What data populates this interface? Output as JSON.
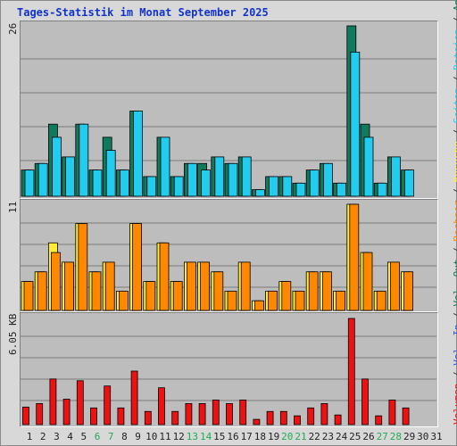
{
  "title": "Tages-Statistik im Monat September 2025",
  "colors": {
    "anfragen": "#127a5c",
    "dateien": "#22ccee",
    "seiten": "#22ccee",
    "besuche": "#ffee33",
    "rechner": "#ff8800",
    "volumen": "#ee1111",
    "vol_in": "#3355dd",
    "vol_out": "#117755",
    "weekend_day": "#22aa55",
    "label_dark": "#222222",
    "separator": "#333333"
  },
  "right_labels": [
    {
      "text": "Volumen",
      "color_key": "volumen"
    },
    {
      "text": "Vol. In",
      "color_key": "vol_in"
    },
    {
      "text": "Vol. Out",
      "color_key": "vol_out"
    },
    {
      "text": "Rechner",
      "color_key": "rechner"
    },
    {
      "text": "Besuche",
      "color_key": "besuche"
    },
    {
      "text": "Seiten",
      "color_key": "seiten"
    },
    {
      "text": "Dateien",
      "color_key": "dateien"
    },
    {
      "text": "Anfragen",
      "color_key": "anfragen"
    }
  ],
  "chart_data": [
    {
      "type": "bar",
      "panel": "top",
      "max_label": "26",
      "ylim": [
        0,
        26
      ],
      "categories": [
        "1",
        "2",
        "3",
        "4",
        "5",
        "6",
        "7",
        "8",
        "9",
        "10",
        "11",
        "12",
        "13",
        "14",
        "15",
        "16",
        "17",
        "18",
        "19",
        "20",
        "21",
        "22",
        "23",
        "24",
        "25",
        "26",
        "27",
        "28",
        "29",
        "30",
        "31"
      ],
      "series": [
        {
          "name": "Anfragen",
          "values": [
            4,
            5,
            11,
            6,
            11,
            4,
            9,
            4,
            13,
            3,
            9,
            3,
            5,
            5,
            6,
            5,
            6,
            1,
            3,
            3,
            2,
            4,
            5,
            2,
            26,
            11,
            2,
            6,
            4,
            0,
            0
          ]
        },
        {
          "name": "Dateien",
          "values": [
            4,
            5,
            9,
            6,
            11,
            4,
            7,
            4,
            13,
            3,
            9,
            3,
            5,
            4,
            6,
            5,
            6,
            1,
            3,
            3,
            2,
            4,
            5,
            2,
            22,
            9,
            2,
            6,
            4,
            0,
            0
          ]
        }
      ]
    },
    {
      "type": "bar",
      "panel": "middle",
      "max_label": "11",
      "ylim": [
        0,
        11
      ],
      "categories": [
        "1",
        "2",
        "3",
        "4",
        "5",
        "6",
        "7",
        "8",
        "9",
        "10",
        "11",
        "12",
        "13",
        "14",
        "15",
        "16",
        "17",
        "18",
        "19",
        "20",
        "21",
        "22",
        "23",
        "24",
        "25",
        "26",
        "27",
        "28",
        "29",
        "30",
        "31"
      ],
      "series": [
        {
          "name": "Besuche",
          "values": [
            3,
            4,
            7,
            5,
            9,
            4,
            5,
            2,
            9,
            3,
            7,
            3,
            5,
            5,
            4,
            2,
            5,
            1,
            2,
            3,
            2,
            4,
            4,
            2,
            11,
            6,
            2,
            5,
            4,
            0,
            0
          ]
        },
        {
          "name": "Rechner",
          "values": [
            3,
            4,
            6,
            5,
            9,
            4,
            5,
            2,
            9,
            3,
            7,
            3,
            5,
            5,
            4,
            2,
            5,
            1,
            2,
            3,
            2,
            4,
            4,
            2,
            11,
            6,
            2,
            5,
            4,
            0,
            0
          ]
        }
      ]
    },
    {
      "type": "bar",
      "panel": "bottom",
      "max_label": "6.05 KB",
      "ylim": [
        0,
        6.05
      ],
      "categories": [
        "1",
        "2",
        "3",
        "4",
        "5",
        "6",
        "7",
        "8",
        "9",
        "10",
        "11",
        "12",
        "13",
        "14",
        "15",
        "16",
        "17",
        "18",
        "19",
        "20",
        "21",
        "22",
        "23",
        "24",
        "25",
        "26",
        "27",
        "28",
        "29",
        "30",
        "31"
      ],
      "series": [
        {
          "name": "Volumen",
          "values": [
            1.0,
            1.2,
            2.6,
            1.45,
            2.5,
            0.95,
            2.2,
            0.95,
            3.05,
            0.75,
            2.1,
            0.75,
            1.2,
            1.2,
            1.4,
            1.2,
            1.4,
            0.3,
            0.75,
            0.75,
            0.5,
            0.95,
            1.2,
            0.55,
            6.05,
            2.6,
            0.5,
            1.4,
            0.95,
            0,
            0
          ]
        }
      ]
    }
  ],
  "weekend_days": [
    "6",
    "7",
    "13",
    "14",
    "20",
    "21",
    "27",
    "28"
  ]
}
